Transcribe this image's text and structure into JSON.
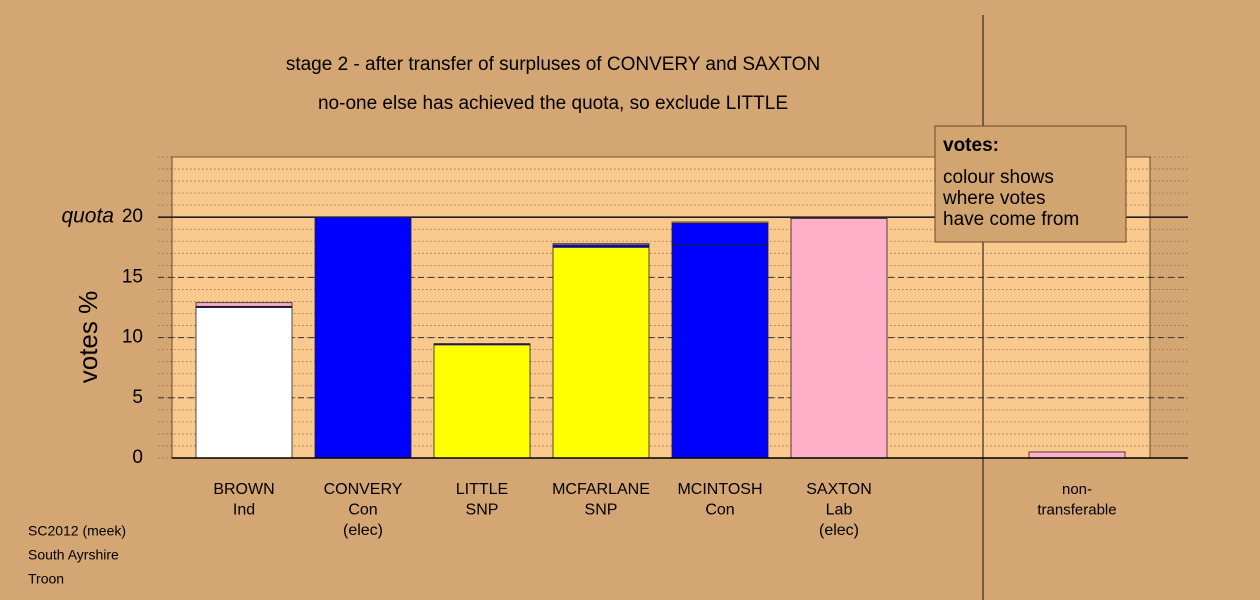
{
  "chart_data": {
    "type": "stacked_bar",
    "title": "stage 2 - after transfer of surpluses of CONVERY and SAXTON",
    "subtitle": "no-one else has achieved the quota, so exclude LITTLE",
    "y_label": "votes %",
    "categories": [
      [
        "BROWN",
        "Ind"
      ],
      [
        "CONVERY",
        "Con",
        "(elec)"
      ],
      [
        "LITTLE",
        "SNP"
      ],
      [
        "MCFARLANE",
        "SNP"
      ],
      [
        "MCINTOSH",
        "Con"
      ],
      [
        "SAXTON",
        "Lab",
        "(elec)"
      ],
      null,
      [
        "non-",
        "transferable"
      ]
    ],
    "series": [
      {
        "colors": [
          "#ffffff",
          "#0000ff",
          "#ffff00",
          "#ffff00",
          "#0000ff",
          "#ffb0c8",
          null,
          null
        ],
        "values": [
          12.5,
          20,
          9.4,
          17.5,
          17.7,
          19.9,
          null,
          null
        ]
      },
      {
        "color": "#0000ff",
        "values": [
          0.1,
          null,
          0.1,
          0.2,
          1.8,
          null,
          null,
          null
        ]
      },
      {
        "color": "#ffb0c8",
        "values": [
          0.3,
          null,
          null,
          0.1,
          0.1,
          null,
          null,
          0.5
        ]
      }
    ],
    "ylim": [
      0,
      25
    ],
    "yticks": [
      0,
      5,
      10,
      15,
      20
    ],
    "minor_grid_step": 1,
    "quota": 20,
    "quota_label": "quota",
    "note": {
      "title": "votes:",
      "lines": [
        "colour shows",
        "where votes",
        "have come from"
      ]
    },
    "footer": [
      "SC2012 (meek)",
      "South Ayrshire",
      "Troon"
    ]
  }
}
